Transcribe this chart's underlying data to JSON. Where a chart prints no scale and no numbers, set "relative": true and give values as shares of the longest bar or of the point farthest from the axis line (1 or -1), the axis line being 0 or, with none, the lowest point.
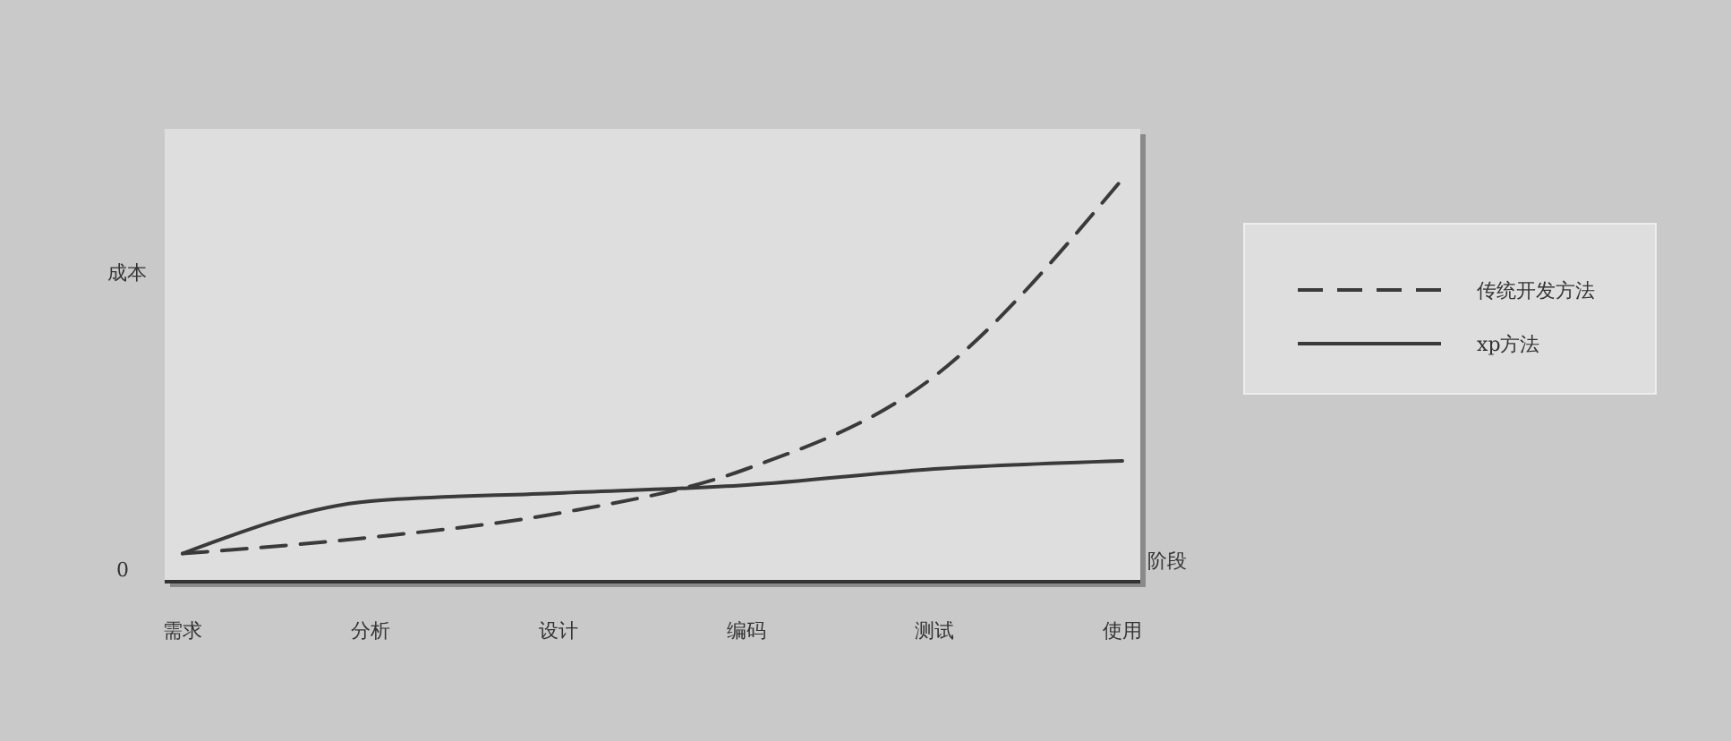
{
  "chart_data": {
    "type": "line",
    "relative": true,
    "ylabel": "成本",
    "xlabel": "阶段",
    "categories": [
      "需求",
      "分析",
      "设计",
      "编码",
      "测试",
      "使用"
    ],
    "series": [
      {
        "name": "传统开发方法",
        "color": "#3a3a3a",
        "line_style": "dashed",
        "values": [
          0.07,
          0.11,
          0.17,
          0.28,
          0.51,
          1.0
        ]
      },
      {
        "name": "xp方法",
        "color": "#3a3a3a",
        "line_style": "solid",
        "values": [
          0.07,
          0.2,
          0.22,
          0.24,
          0.28,
          0.3
        ]
      }
    ],
    "annotations": [
      "0"
    ],
    "legend": "right",
    "marker": "none",
    "grid": false
  }
}
